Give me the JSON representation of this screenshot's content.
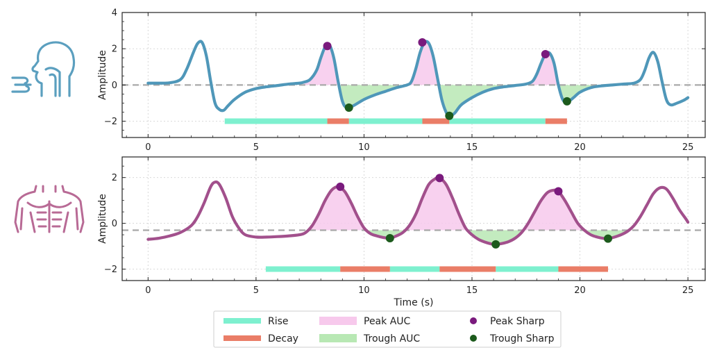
{
  "chart_data": [
    {
      "type": "line",
      "panel": "breathing",
      "icon": "respiration-icon",
      "icon_color": "#5b9fbf",
      "line_color": "#4f97b9",
      "ylabel": "Amplitude",
      "xlabel": "",
      "xlim": [
        -1.2,
        25.8
      ],
      "ylim": [
        -2.9,
        4.0
      ],
      "xticks": [
        0,
        5,
        10,
        15,
        20,
        25
      ],
      "xtick_labels": [
        "0",
        "5",
        "10",
        "15",
        "20",
        "25"
      ],
      "yticks": [
        -2,
        0,
        2,
        4
      ],
      "ytick_labels": [
        "−2",
        "0",
        "2",
        "4"
      ],
      "grid": true,
      "baseline": 0.0,
      "x": [
        0,
        0.5,
        1,
        1.5,
        1.8,
        2.1,
        2.3,
        2.5,
        2.7,
        2.9,
        3.1,
        3.3,
        3.5,
        3.7,
        4,
        4.5,
        5,
        5.5,
        6,
        6.5,
        7,
        7.2,
        7.5,
        7.8,
        8,
        8.2,
        8.4,
        8.6,
        8.8,
        9,
        9.2,
        9.5,
        10,
        10.5,
        11,
        11.5,
        12,
        12.2,
        12.4,
        12.6,
        12.8,
        13,
        13.2,
        13.4,
        13.6,
        13.8,
        13.95,
        14.2,
        14.5,
        15,
        15.5,
        16,
        16.5,
        17,
        17.5,
        17.8,
        18,
        18.2,
        18.4,
        18.6,
        18.8,
        19,
        19.2,
        19.4,
        19.7,
        20,
        20.5,
        21,
        21.5,
        22,
        22.5,
        22.8,
        23,
        23.2,
        23.4,
        23.6,
        23.8,
        24,
        24.2,
        24.5,
        24.8,
        25
      ],
      "y": [
        0.1,
        0.1,
        0.12,
        0.3,
        0.9,
        1.8,
        2.3,
        2.35,
        1.6,
        0.2,
        -1.0,
        -1.35,
        -1.4,
        -1.15,
        -0.8,
        -0.4,
        -0.2,
        -0.1,
        -0.03,
        0.05,
        0.1,
        0.15,
        0.3,
        0.8,
        1.5,
        2.1,
        2.2,
        1.5,
        0.2,
        -0.9,
        -1.25,
        -1.15,
        -0.8,
        -0.55,
        -0.35,
        -0.15,
        0.0,
        0.2,
        0.9,
        1.8,
        2.35,
        2.3,
        1.6,
        0.4,
        -0.8,
        -1.5,
        -1.7,
        -1.55,
        -1.1,
        -0.7,
        -0.4,
        -0.2,
        -0.1,
        -0.03,
        0.05,
        0.2,
        0.6,
        1.2,
        1.7,
        1.75,
        1.2,
        0.0,
        -0.8,
        -0.95,
        -0.7,
        -0.4,
        -0.15,
        -0.05,
        0.0,
        0.05,
        0.1,
        0.3,
        0.8,
        1.5,
        1.8,
        1.3,
        0.2,
        -0.8,
        -1.1,
        -1.0,
        -0.85,
        -0.7
      ],
      "peak_auc": [
        [
          7.2,
          8.85
        ],
        [
          12.0,
          13.4
        ],
        [
          17.5,
          19.0
        ]
      ],
      "trough_auc": [
        [
          8.85,
          12.0
        ],
        [
          13.4,
          17.5
        ],
        [
          19.0,
          22.2
        ]
      ],
      "peak_sharp": [
        {
          "x": 8.3,
          "y": 2.15
        },
        {
          "x": 12.7,
          "y": 2.35
        },
        {
          "x": 18.4,
          "y": 1.7
        }
      ],
      "trough_sharp": [
        {
          "x": 9.3,
          "y": -1.25
        },
        {
          "x": 13.95,
          "y": -1.7
        },
        {
          "x": 19.4,
          "y": -0.9
        }
      ],
      "rise": [
        [
          3.55,
          8.3
        ],
        [
          9.3,
          12.7
        ],
        [
          13.95,
          18.4
        ]
      ],
      "decay": [
        [
          8.3,
          9.3
        ],
        [
          12.7,
          13.95
        ],
        [
          18.4,
          19.4
        ]
      ],
      "bar_y": -2.0
    },
    {
      "type": "line",
      "panel": "abdominal",
      "icon": "torso-icon",
      "icon_color": "#b86a95",
      "line_color": "#a2508c",
      "ylabel": "Amplitude",
      "xlabel": "Time (s)",
      "xlim": [
        -1.2,
        25.8
      ],
      "ylim": [
        -2.5,
        2.9
      ],
      "xticks": [
        0,
        5,
        10,
        15,
        20,
        25
      ],
      "xtick_labels": [
        "0",
        "5",
        "10",
        "15",
        "20",
        "25"
      ],
      "yticks": [
        -2,
        0,
        2
      ],
      "ytick_labels": [
        "−2",
        "0",
        "2"
      ],
      "grid": true,
      "baseline": -0.3,
      "x": [
        0,
        0.5,
        1,
        1.5,
        2,
        2.3,
        2.6,
        2.9,
        3.1,
        3.3,
        3.6,
        3.9,
        4.2,
        4.5,
        5,
        5.5,
        6,
        6.5,
        7,
        7.3,
        7.6,
        7.9,
        8.2,
        8.5,
        8.8,
        9.1,
        9.4,
        9.7,
        10,
        10.3,
        10.6,
        10.9,
        11.2,
        11.5,
        11.8,
        12.1,
        12.4,
        12.7,
        13,
        13.3,
        13.5,
        13.8,
        14.1,
        14.4,
        14.7,
        15,
        15.3,
        15.6,
        15.9,
        16.1,
        16.4,
        16.7,
        17,
        17.3,
        17.6,
        17.9,
        18.2,
        18.5,
        18.8,
        19,
        19.3,
        19.6,
        19.9,
        20.2,
        20.5,
        20.8,
        21.1,
        21.3,
        21.6,
        21.9,
        22.2,
        22.5,
        22.8,
        23.1,
        23.4,
        23.7,
        24,
        24.3,
        24.6,
        24.9,
        25
      ],
      "y": [
        -0.7,
        -0.65,
        -0.55,
        -0.4,
        -0.1,
        0.3,
        0.9,
        1.6,
        1.8,
        1.7,
        1.1,
        0.3,
        -0.2,
        -0.5,
        -0.6,
        -0.6,
        -0.58,
        -0.55,
        -0.5,
        -0.4,
        -0.1,
        0.4,
        1.0,
        1.45,
        1.6,
        1.4,
        0.9,
        0.3,
        -0.2,
        -0.45,
        -0.55,
        -0.62,
        -0.65,
        -0.55,
        -0.4,
        -0.1,
        0.4,
        1.1,
        1.7,
        1.95,
        1.98,
        1.7,
        1.1,
        0.4,
        -0.2,
        -0.5,
        -0.7,
        -0.82,
        -0.9,
        -0.92,
        -0.88,
        -0.8,
        -0.65,
        -0.4,
        0.0,
        0.5,
        1.0,
        1.35,
        1.45,
        1.4,
        1.0,
        0.5,
        0.0,
        -0.3,
        -0.5,
        -0.6,
        -0.66,
        -0.67,
        -0.6,
        -0.5,
        -0.35,
        -0.1,
        0.3,
        0.8,
        1.3,
        1.55,
        1.5,
        1.1,
        0.6,
        0.2,
        0.05
      ],
      "peak_auc": [
        [
          7.3,
          10.0
        ],
        [
          12.0,
          14.7
        ],
        [
          17.4,
          20.3
        ]
      ],
      "trough_auc": [
        [
          10.0,
          12.0
        ],
        [
          14.7,
          17.4
        ],
        [
          20.3,
          22.4
        ]
      ],
      "peak_sharp": [
        {
          "x": 8.9,
          "y": 1.6
        },
        {
          "x": 13.5,
          "y": 1.98
        },
        {
          "x": 19.0,
          "y": 1.4
        }
      ],
      "trough_sharp": [
        {
          "x": 11.2,
          "y": -0.65
        },
        {
          "x": 16.1,
          "y": -0.92
        },
        {
          "x": 21.3,
          "y": -0.67
        }
      ],
      "rise": [
        [
          5.45,
          8.9
        ],
        [
          11.2,
          13.5
        ],
        [
          16.1,
          19.0
        ]
      ],
      "decay": [
        [
          8.9,
          11.2
        ],
        [
          13.5,
          16.1
        ],
        [
          19.0,
          21.3
        ]
      ],
      "bar_y": -2.0
    }
  ],
  "legend": {
    "placement": "bottom-center",
    "items": [
      {
        "label": "Rise",
        "kind": "band",
        "color": "#7ef0cf"
      },
      {
        "label": "Peak AUC",
        "kind": "fill",
        "color": "#f7c9ec"
      },
      {
        "label": "Peak Sharp",
        "kind": "dot",
        "color": "#7a1a7d"
      },
      {
        "label": "Decay",
        "kind": "band",
        "color": "#ea7d67"
      },
      {
        "label": "Trough AUC",
        "kind": "fill",
        "color": "#b8e8b4"
      },
      {
        "label": "Trough Sharp",
        "kind": "dot",
        "color": "#1c5a1c"
      }
    ]
  },
  "colors": {
    "rise": "#7ef0cf",
    "decay": "#ea7d67",
    "peak_auc": "#f7c9ec",
    "trough_auc": "#b8e8b4",
    "peak_sharp": "#7a1a7d",
    "trough_sharp": "#1c5a1c",
    "baseline": "#a8a8a8",
    "grid": "#d4d4d4"
  }
}
